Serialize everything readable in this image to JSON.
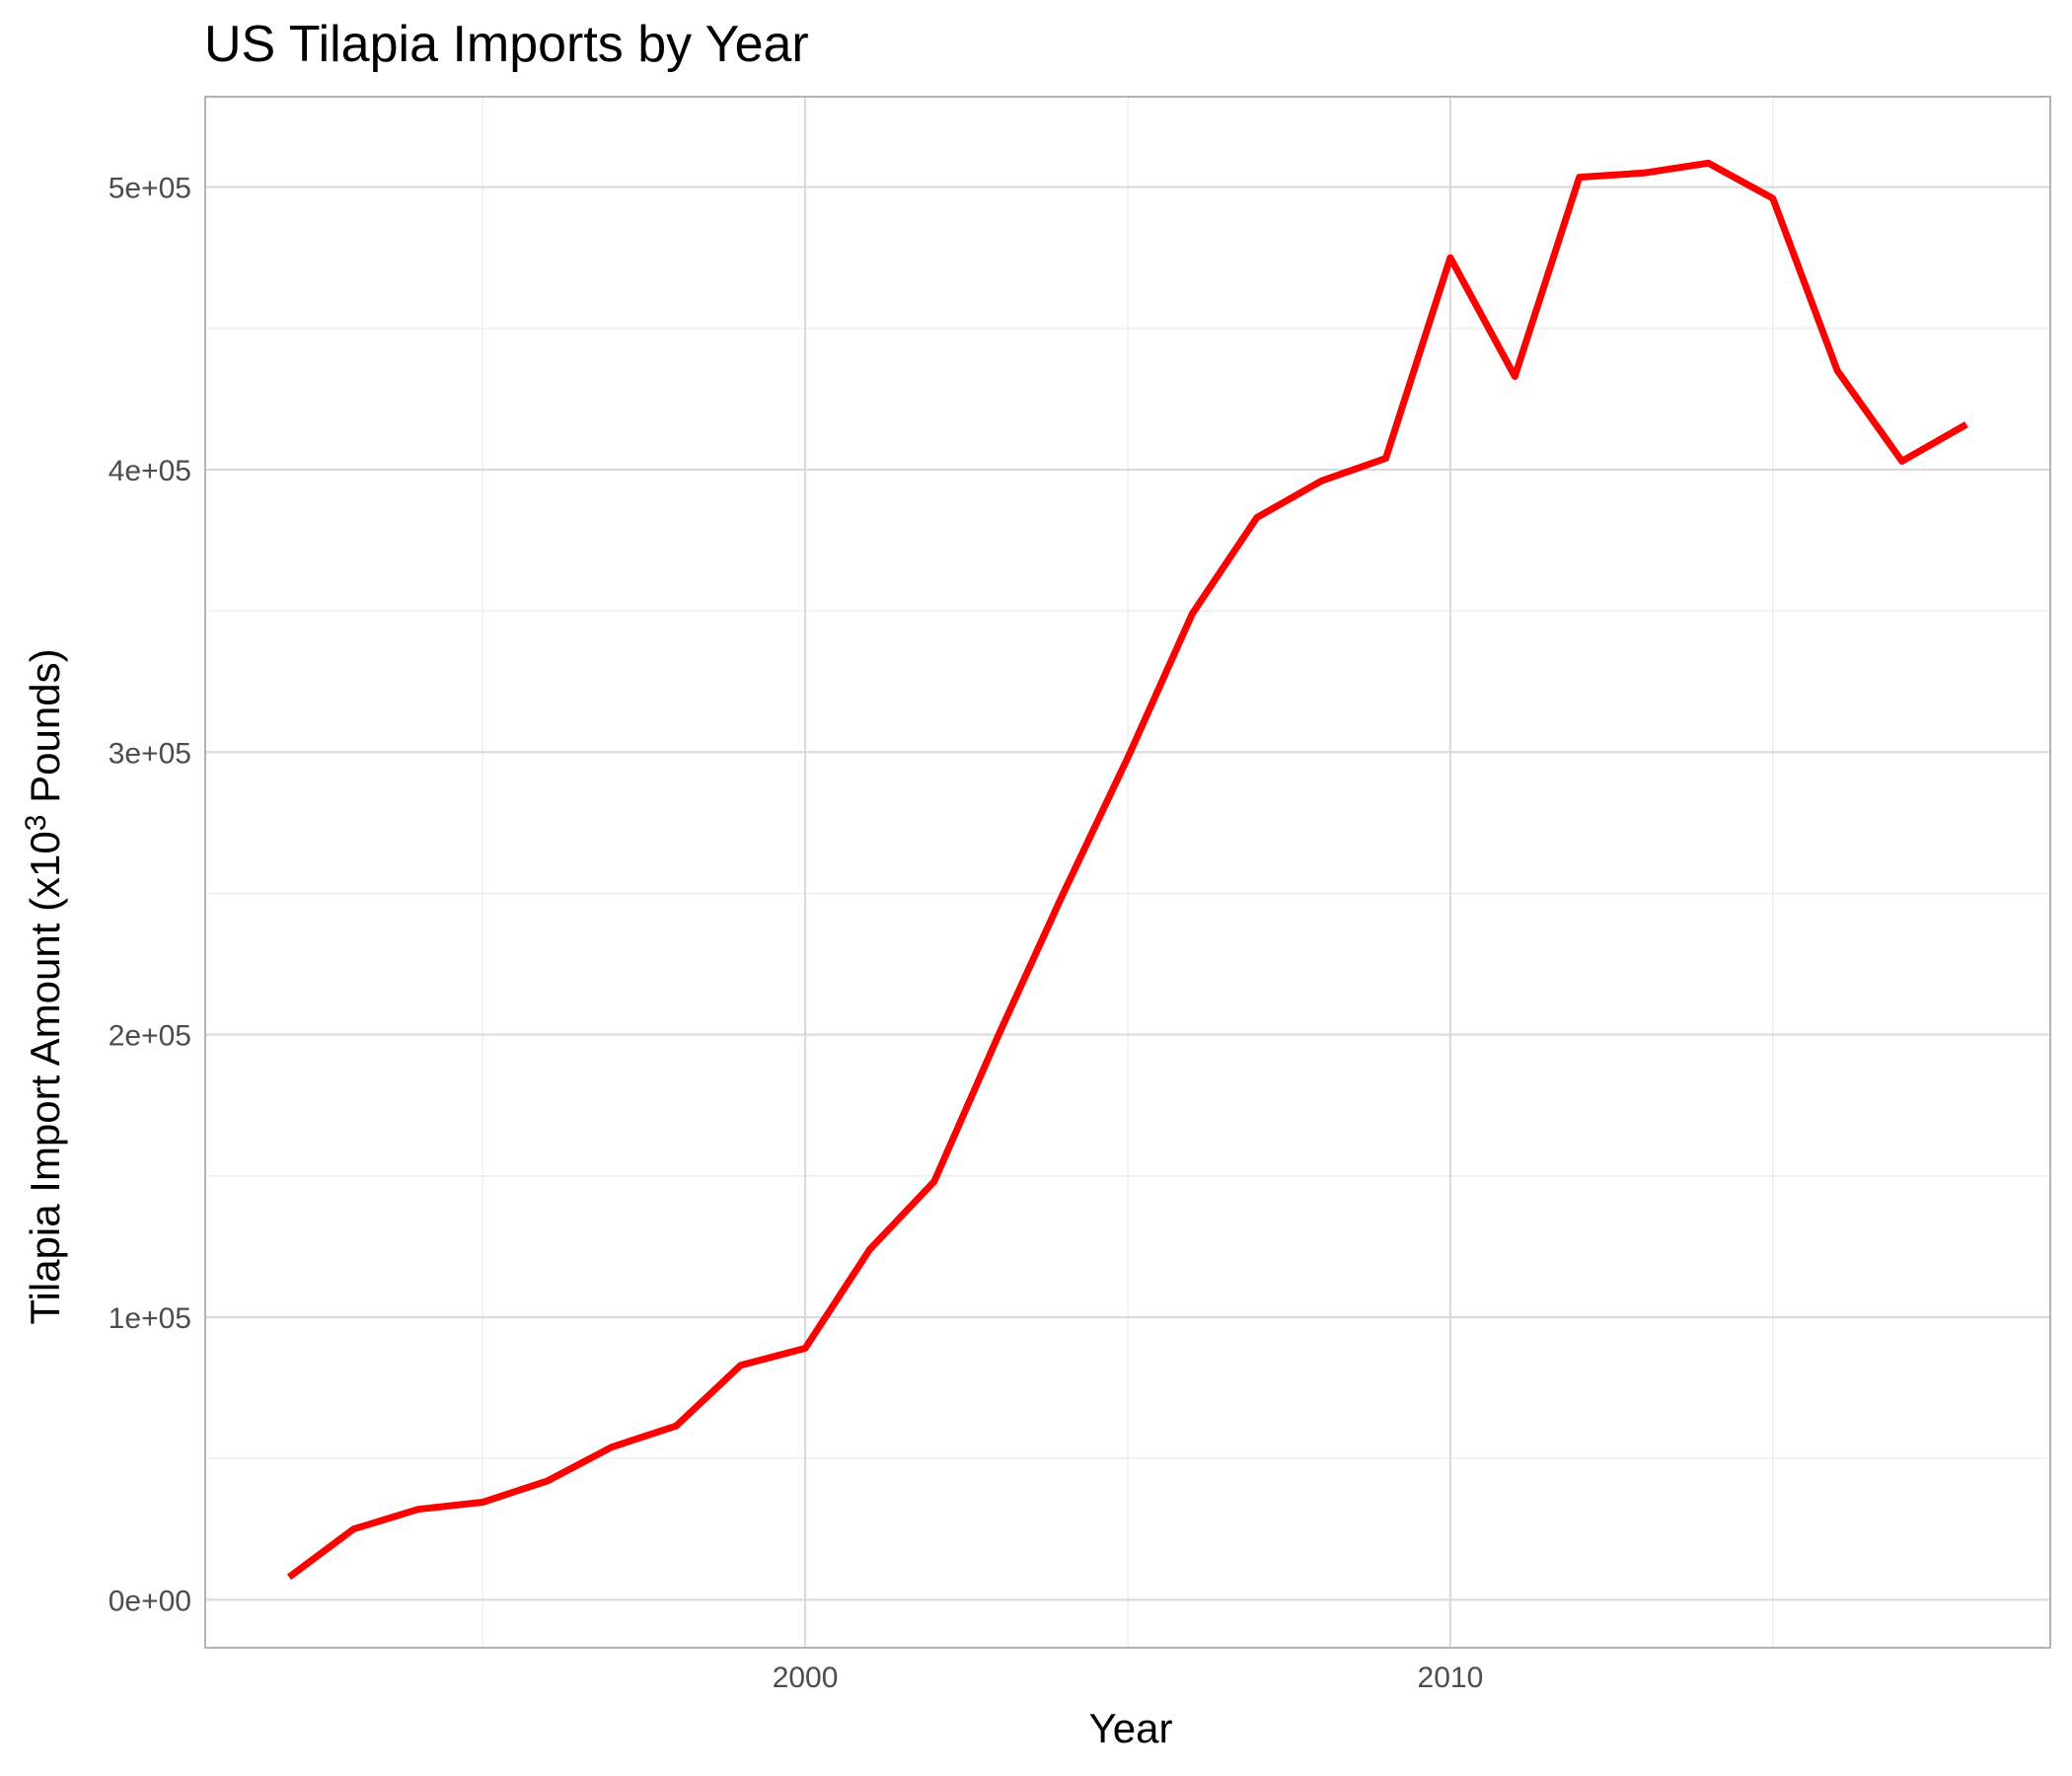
{
  "chart_data": {
    "type": "line",
    "title": "US Tilapia Imports by Year",
    "xlabel": "Year",
    "ylabel": {
      "prefix": "Tilapia Import Amount (x10",
      "superscript": "3",
      "suffix": " Pounds)"
    },
    "xlim": [
      1990.7,
      2019.3
    ],
    "ylim": [
      -17000,
      532000
    ],
    "x_ticks": [
      2000,
      2010
    ],
    "x_tick_labels": [
      "2000",
      "2010"
    ],
    "y_ticks": [
      0,
      100000,
      200000,
      300000,
      400000,
      500000
    ],
    "y_tick_labels": [
      "0e+00",
      "1e+05",
      "2e+05",
      "3e+05",
      "4e+05",
      "5e+05"
    ],
    "grid": true,
    "legend": "none",
    "line_color": "#ff0000",
    "x": [
      1992,
      1993,
      1994,
      1995,
      1996,
      1997,
      1998,
      1999,
      2000,
      2001,
      2002,
      2003,
      2004,
      2005,
      2006,
      2007,
      2008,
      2009,
      2010,
      2011,
      2012,
      2013,
      2014,
      2015,
      2016,
      2017,
      2018
    ],
    "values": [
      8000,
      25000,
      32000,
      34500,
      42000,
      54000,
      61500,
      83000,
      89000,
      124000,
      148000,
      200000,
      250000,
      298000,
      349000,
      383000,
      396000,
      404000,
      475000,
      433000,
      503500,
      505000,
      508500,
      496000,
      435000,
      403000,
      416000
    ]
  }
}
